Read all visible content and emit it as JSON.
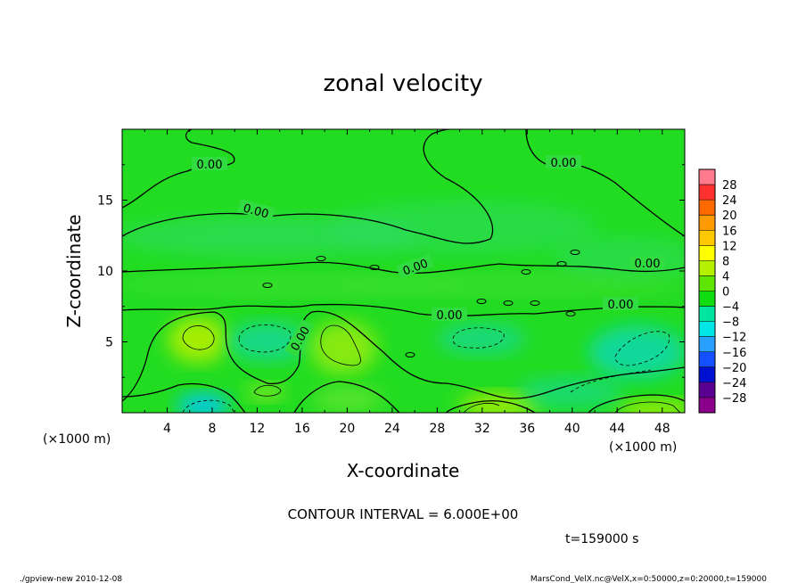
{
  "chart_data": {
    "type": "contour",
    "title": "zonal velocity",
    "xlabel": "X-coordinate",
    "ylabel": "Z-coordinate",
    "x_unit": "(×1000 m)",
    "y_unit": "(×1000 m)",
    "xlim": [
      0,
      50
    ],
    "ylim": [
      0,
      20
    ],
    "x_ticks": [
      "4",
      "8",
      "12",
      "16",
      "20",
      "24",
      "28",
      "32",
      "36",
      "40",
      "44",
      "48"
    ],
    "x_tick_values": [
      4,
      8,
      12,
      16,
      20,
      24,
      28,
      32,
      36,
      40,
      44,
      48
    ],
    "y_ticks": [
      "5",
      "10",
      "15"
    ],
    "y_tick_values": [
      5,
      10,
      15
    ],
    "contour_labels": [
      "0.00",
      "0.00",
      "0.00",
      "0.00",
      "0.00",
      "0.00",
      "0.00",
      "0.00"
    ],
    "colorbar": {
      "labels": [
        "28",
        "24",
        "20",
        "16",
        "12",
        "8",
        "4",
        "0",
        "−4",
        "−8",
        "−12",
        "−16",
        "−20",
        "−24",
        "−28"
      ],
      "colors": [
        "#ff7a8c",
        "#ff3030",
        "#ff6a00",
        "#ff9a00",
        "#ffc800",
        "#ffff00",
        "#b4f000",
        "#5ee600",
        "#10dc10",
        "#00e6a0",
        "#00e6e6",
        "#28a0ff",
        "#1450ff",
        "#0010d0",
        "#5a0090",
        "#8a008a"
      ]
    },
    "contour_interval": "CONTOUR INTERVAL = 6.000E+00",
    "time": "t=159000  s",
    "footer_left": "./gpview-new   2010-12-08",
    "footer_right": "MarsCond_VelX.nc@VelX,x=0:50000,z=0:20000,t=159000"
  }
}
